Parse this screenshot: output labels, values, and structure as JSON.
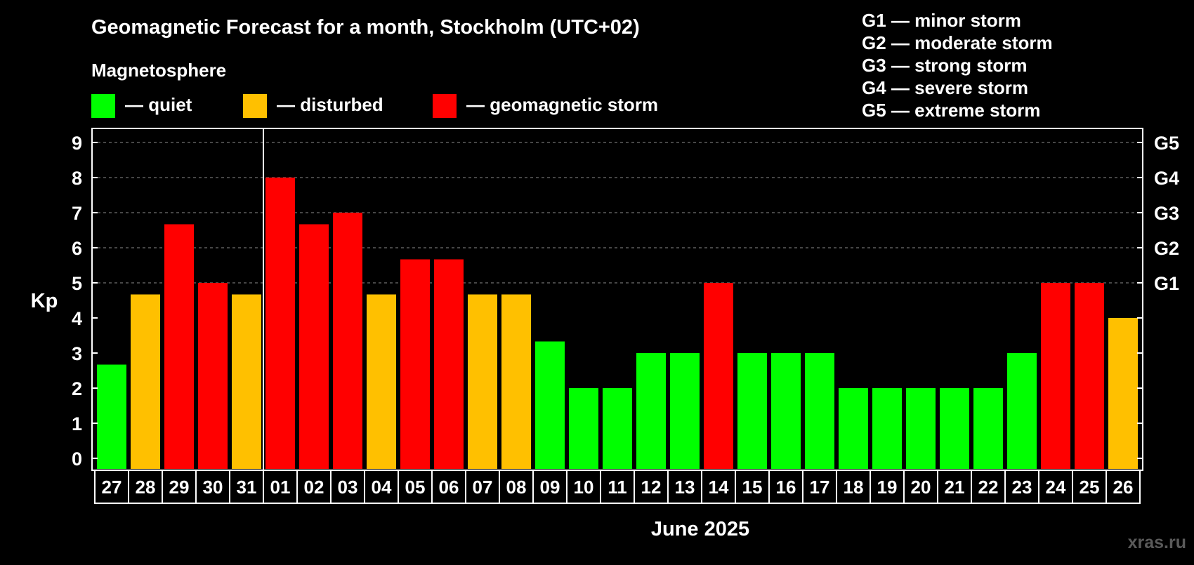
{
  "chart_data": {
    "type": "bar",
    "title": "Geomagnetic Forecast for a month, Stockholm (UTC+02)",
    "subtitle": "Magnetosphere",
    "ylabel": "Kp",
    "xlabel": "June 2025",
    "ylim": [
      0,
      9
    ],
    "grid": true,
    "y_ticks": [
      "0",
      "1",
      "2",
      "3",
      "4",
      "5",
      "6",
      "7",
      "8",
      "9"
    ],
    "right_axis_labels": [
      {
        "value": 5,
        "label": "G1"
      },
      {
        "value": 6,
        "label": "G2"
      },
      {
        "value": 7,
        "label": "G3"
      },
      {
        "value": 8,
        "label": "G4"
      },
      {
        "value": 9,
        "label": "G5"
      }
    ],
    "legend": [
      {
        "label": "— quiet",
        "color": "#00ff00"
      },
      {
        "label": "— disturbed",
        "color": "#ffc000"
      },
      {
        "label": "— geomagnetic storm",
        "color": "#ff0000"
      }
    ],
    "storm_scale": [
      "G1 — minor storm",
      "G2 — moderate storm",
      "G3 — strong storm",
      "G4 — severe storm",
      "G5 — extreme storm"
    ],
    "month_boundary_after_index": 4,
    "categories": [
      "27",
      "28",
      "29",
      "30",
      "31",
      "01",
      "02",
      "03",
      "04",
      "05",
      "06",
      "07",
      "08",
      "09",
      "10",
      "11",
      "12",
      "13",
      "14",
      "15",
      "16",
      "17",
      "18",
      "19",
      "20",
      "21",
      "22",
      "23",
      "24",
      "25",
      "26"
    ],
    "values": [
      2.67,
      4.67,
      6.67,
      5,
      4.67,
      8,
      6.67,
      7,
      4.67,
      5.67,
      5.67,
      4.67,
      4.67,
      3.33,
      2,
      2,
      3,
      3,
      5,
      3,
      3,
      3,
      2,
      2,
      2,
      2,
      2,
      3,
      5,
      5,
      4
    ],
    "bar_colors": [
      "#00ff00",
      "#ffc000",
      "#ff0000",
      "#ff0000",
      "#ffc000",
      "#ff0000",
      "#ff0000",
      "#ff0000",
      "#ffc000",
      "#ff0000",
      "#ff0000",
      "#ffc000",
      "#ffc000",
      "#00ff00",
      "#00ff00",
      "#00ff00",
      "#00ff00",
      "#00ff00",
      "#ff0000",
      "#00ff00",
      "#00ff00",
      "#00ff00",
      "#00ff00",
      "#00ff00",
      "#00ff00",
      "#00ff00",
      "#00ff00",
      "#00ff00",
      "#ff0000",
      "#ff0000",
      "#ffc000"
    ]
  },
  "watermark": "xras.ru"
}
